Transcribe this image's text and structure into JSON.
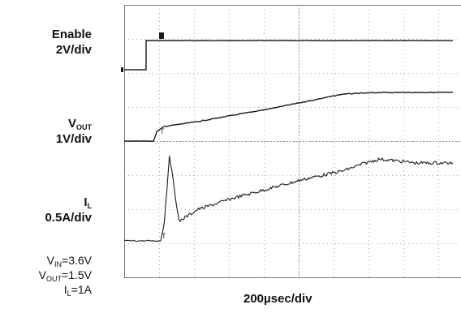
{
  "chart_data": {
    "type": "line",
    "title": "",
    "xlabel": "200µsec/div",
    "grid": true,
    "channels": [
      {
        "symbol": "Enable",
        "sub": "",
        "scale": "2V/div"
      },
      {
        "symbol": "V",
        "sub": "OUT",
        "scale": "1V/div"
      },
      {
        "symbol": "I",
        "sub": "L",
        "scale": "0.5A/div"
      }
    ],
    "series": [
      {
        "x": [
          0,
          0.3,
          0.3,
          4.5
        ],
        "y": [
          0,
          0,
          1.8,
          1.8
        ]
      },
      {
        "x": [
          0,
          0.4,
          0.45,
          0.55,
          1.0,
          2.0,
          3.0,
          3.5,
          3.8,
          4.5
        ],
        "y": [
          0,
          0,
          0.3,
          0.45,
          0.6,
          1.0,
          1.45,
          1.5,
          1.5,
          1.5
        ]
      },
      {
        "x": [
          0,
          0.5,
          0.55,
          0.62,
          0.75,
          1.0,
          1.5,
          2.0,
          2.5,
          3.0,
          3.3,
          3.5,
          4.0,
          4.5
        ],
        "y": [
          0,
          0,
          0.5,
          2.2,
          0.5,
          0.8,
          1.1,
          1.35,
          1.6,
          1.8,
          2.0,
          2.1,
          2.0,
          2.0
        ]
      }
    ],
    "conditions": [
      {
        "sym": "V",
        "sub": "IN",
        "val": "=3.6V"
      },
      {
        "sym": "V",
        "sub": "OUT",
        "val": "=1.5V"
      },
      {
        "sym": "I",
        "sub": "L",
        "val": "=1A"
      }
    ]
  }
}
